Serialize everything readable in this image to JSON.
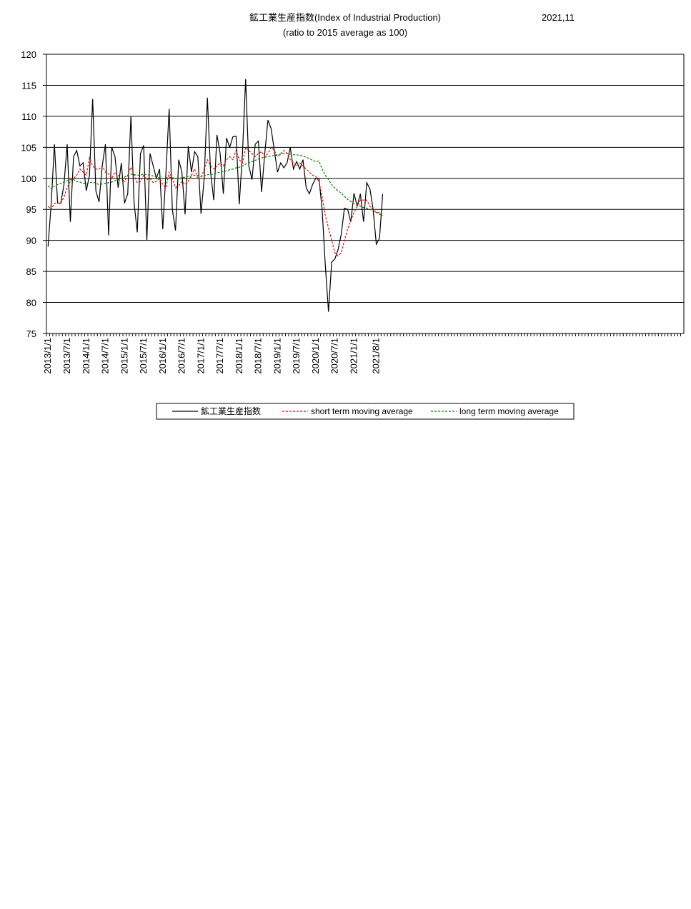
{
  "chart_data": {
    "type": "line",
    "title": "鉱工業生産指数(Index of Industrial Production)",
    "date_label": "2021,11",
    "subtitle": "(ratio to 2015 average as 100)",
    "categories": [
      "2013/1/1",
      null,
      null,
      null,
      null,
      null,
      "2013/7/1",
      null,
      null,
      null,
      null,
      null,
      "2014/1/1",
      null,
      null,
      null,
      null,
      null,
      "2014/7/1",
      null,
      null,
      null,
      null,
      null,
      "2015/1/1",
      null,
      null,
      null,
      null,
      null,
      "2015/7/1",
      null,
      null,
      null,
      null,
      null,
      "2016/1/1",
      null,
      null,
      null,
      null,
      null,
      "2016/7/1",
      null,
      null,
      null,
      null,
      null,
      "2017/1/1",
      null,
      null,
      null,
      null,
      null,
      "2017/7/1",
      null,
      null,
      null,
      null,
      null,
      "2018/1/1",
      null,
      null,
      null,
      null,
      null,
      "2018/7/1",
      null,
      null,
      null,
      null,
      null,
      "2019/1/1",
      null,
      null,
      null,
      null,
      null,
      "2019/7/1",
      null,
      null,
      null,
      null,
      null,
      "2020/1/1",
      null,
      null,
      null,
      null,
      null,
      "2020/7/1",
      null,
      null,
      null,
      null,
      null,
      "2021/1/1",
      null,
      null,
      null,
      null,
      null,
      null,
      "2021/8/1",
      null,
      null,
      null,
      null,
      null,
      null,
      null,
      null,
      null,
      null,
      null,
      null,
      null,
      null,
      null,
      null,
      null,
      null,
      null,
      null,
      null,
      null,
      null,
      null,
      null,
      null,
      null,
      null,
      null,
      null,
      null,
      null,
      null,
      null,
      null,
      null,
      null,
      null,
      null,
      null,
      null,
      null,
      null,
      null,
      null,
      null,
      null,
      null,
      null,
      null,
      null,
      null,
      null,
      null,
      null,
      null,
      null,
      null,
      null,
      null,
      null,
      null,
      null,
      null,
      null,
      null,
      null,
      null,
      null,
      null,
      null,
      null,
      null,
      null,
      null,
      null,
      null,
      null,
      null,
      null,
      null,
      null,
      null,
      null,
      null,
      null,
      null,
      null,
      null,
      null,
      null,
      null,
      null,
      null,
      null,
      null
    ],
    "series": [
      {
        "name": "鉱工業生産指数",
        "color": "#000000",
        "dashed": false,
        "values": [
          89,
          96,
          105.5,
          96,
          96,
          99,
          105.5,
          93,
          103.5,
          104.5,
          102,
          102.5,
          98,
          100.5,
          112.8,
          98,
          96.2,
          102,
          105.5,
          90.8,
          105,
          103.5,
          98.5,
          102.5,
          96,
          97.5,
          110,
          96,
          91.3,
          104,
          105.3,
          90,
          104,
          102,
          100,
          101.5,
          91.8,
          101,
          111.2,
          95,
          91.6,
          103,
          101,
          94.2,
          105.2,
          101,
          104.3,
          103.5,
          94.3,
          100,
          113,
          101,
          96.5,
          107,
          104,
          97.5,
          106.5,
          105,
          106.7,
          106.8,
          95.8,
          104,
          116,
          102,
          99.8,
          105.5,
          106,
          97.8,
          104,
          109.4,
          108,
          104.5,
          101,
          102.5,
          101.7,
          102.5,
          105,
          101.5,
          102.7,
          101.5,
          103,
          98.5,
          97.5,
          99,
          100,
          100,
          95,
          86,
          78.5,
          86.5,
          87,
          88.5,
          91,
          95.2,
          95,
          93,
          97.6,
          95.5,
          97.5,
          93,
          99.3,
          98.3,
          95,
          89.4,
          90.3,
          97.5,
          null,
          null,
          null,
          null,
          null,
          null,
          null,
          null,
          null,
          null,
          null,
          null,
          null,
          null,
          null,
          null,
          null,
          null,
          null,
          null,
          null,
          null,
          null,
          null,
          null,
          null,
          null,
          null,
          null,
          null,
          null,
          null,
          null,
          null,
          null,
          null,
          null,
          null,
          null,
          null,
          null,
          null,
          null,
          null,
          null,
          null,
          null,
          null,
          null,
          null,
          null,
          null,
          null,
          null,
          null,
          null,
          null,
          null,
          null,
          null,
          null,
          null,
          null,
          null,
          null,
          null,
          null,
          null,
          null,
          null,
          null,
          null,
          null,
          null,
          null,
          null,
          null,
          null,
          null,
          null,
          null,
          null,
          null,
          null,
          null,
          null,
          null,
          null,
          null,
          null,
          null,
          null,
          null,
          null
        ]
      },
      {
        "name": "short term moving average",
        "color": "#ff0000",
        "dashed": true,
        "values": [
          95.5,
          95,
          96,
          96,
          96,
          97,
          98.5,
          99.5,
          100,
          100.5,
          101.5,
          101,
          100.5,
          103.3,
          102,
          101.5,
          101.5,
          102,
          101,
          100.7,
          100,
          101,
          100.5,
          100,
          99.5,
          100.5,
          101.8,
          100.5,
          99.3,
          99.5,
          100.5,
          99.8,
          100,
          99.3,
          99.5,
          100,
          99,
          98.5,
          101,
          100,
          98.5,
          98.8,
          99.5,
          99,
          99.5,
          100.5,
          101.5,
          100,
          100,
          101.5,
          103,
          102,
          101.5,
          102,
          102.5,
          102,
          103,
          103.5,
          103,
          104.5,
          103,
          102.5,
          105,
          104.5,
          104,
          103.5,
          104,
          104.3,
          103.5,
          104,
          105,
          104.5,
          103.5,
          104,
          104.5,
          104,
          103,
          102.5,
          102,
          102.5,
          102,
          101.5,
          101,
          100.5,
          100.3,
          99.5,
          97,
          94,
          92,
          90,
          88,
          87.5,
          88,
          90,
          91.8,
          93.2,
          94.5,
          95.5,
          96.5,
          96.5,
          96.5,
          95.5,
          95,
          94.5,
          94.5,
          94,
          null,
          null,
          null,
          null,
          null,
          null,
          null,
          null,
          null,
          null,
          null,
          null,
          null,
          null,
          null,
          null,
          null,
          null,
          null,
          null,
          null,
          null,
          null,
          null,
          null,
          null,
          null,
          null,
          null,
          null,
          null,
          null,
          null,
          null,
          null,
          null,
          null,
          null,
          null,
          null,
          null,
          null,
          null,
          null,
          null,
          null,
          null,
          null,
          null,
          null,
          null,
          null,
          null,
          null,
          null,
          null,
          null,
          null,
          null,
          null,
          null,
          null,
          null,
          null,
          null,
          null,
          null,
          null,
          null,
          null,
          null,
          null,
          null,
          null,
          null,
          null,
          null,
          null,
          null,
          null,
          null,
          null,
          null,
          null,
          null,
          null,
          null,
          null,
          null,
          null,
          null,
          null,
          null,
          null
        ]
      },
      {
        "name": "long term moving average",
        "color": "#008000",
        "dashed": true,
        "values": [
          98.8,
          98.3,
          98.7,
          99,
          99.2,
          99.4,
          99.6,
          99.8,
          99.8,
          99.5,
          99.4,
          99.2,
          99.2,
          99.3,
          99.4,
          99.2,
          99,
          99.1,
          99.2,
          99.3,
          99.4,
          99.6,
          99.8,
          100,
          100.2,
          100.5,
          100.7,
          100.6,
          100.5,
          100.5,
          100.7,
          100.6,
          100.5,
          100.4,
          100.2,
          100.1,
          100,
          100.1,
          100.2,
          100.1,
          100,
          100,
          100.1,
          100.2,
          100.3,
          100.4,
          100.5,
          100.5,
          100.3,
          100.4,
          100.6,
          100.6,
          100.7,
          100.9,
          101,
          101.1,
          101.2,
          101.4,
          101.5,
          101.7,
          101.8,
          102,
          102.3,
          102.5,
          102.7,
          102.9,
          103.1,
          103.3,
          103.4,
          103.5,
          103.6,
          103.7,
          103.8,
          103.9,
          104,
          104,
          103.9,
          103.8,
          103.8,
          103.7,
          103.6,
          103.4,
          103.2,
          102.9,
          102.7,
          102.8,
          101.5,
          100.5,
          99.8,
          99,
          98.4,
          98,
          97.6,
          97.1,
          96.6,
          96.3,
          96,
          95.8,
          95.5,
          95.3,
          95.2,
          95,
          94.8,
          94.5,
          94.2,
          94,
          null,
          null,
          null,
          null,
          null,
          null,
          null,
          null,
          null,
          null,
          null,
          null,
          null,
          null,
          null,
          null,
          null,
          null,
          null,
          null,
          null,
          null,
          null,
          null,
          null,
          null,
          null,
          null,
          null,
          null,
          null,
          null,
          null,
          null,
          null,
          null,
          null,
          null,
          null,
          null,
          null,
          null,
          null,
          null,
          null,
          null,
          null,
          null,
          null,
          null,
          null,
          null,
          null,
          null,
          null,
          null,
          null,
          null,
          null,
          null,
          null,
          null,
          null,
          null,
          null,
          null,
          null,
          null,
          null,
          null,
          null,
          null,
          null,
          null,
          null,
          null,
          null,
          null,
          null,
          null,
          null,
          null,
          null,
          null,
          null,
          null,
          null,
          null,
          null,
          null,
          null,
          null,
          null,
          null
        ]
      }
    ],
    "ylim": [
      75,
      120
    ],
    "yticks": [
      75,
      80,
      85,
      90,
      95,
      100,
      105,
      110,
      115,
      120
    ],
    "grid": true,
    "legend": "bottom"
  }
}
